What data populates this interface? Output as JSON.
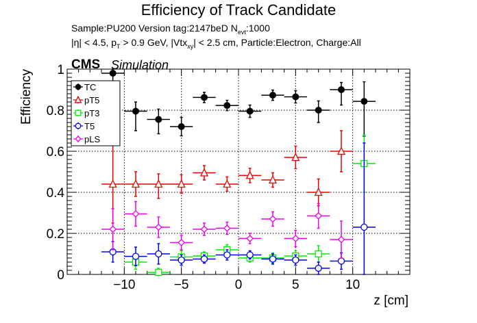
{
  "header": {
    "title": "Efficiency of Track Candidate",
    "subtitle_line1": "Sample:PU200   Version tag:2147beD  N",
    "subtitle_line1_sub": "evt",
    "subtitle_line1_end": ":1000",
    "subtitle_line2_a": "|η| < 4.5, p",
    "subtitle_line2_sub1": "T",
    "subtitle_line2_b": " > 0.9 GeV, |Vtx",
    "subtitle_line2_sub2": "xy",
    "subtitle_line2_c": "| < 2.5 cm, Particle:Electron, Charge:All",
    "experiment": "CMS",
    "tag": "Simulation"
  },
  "chart_data": {
    "type": "scatter",
    "xlabel": "z [cm]",
    "ylabel": "Efficiency",
    "xlim": [
      -15,
      15
    ],
    "ylim": [
      0,
      1.0
    ],
    "xticks": [
      -10,
      -5,
      0,
      5,
      10
    ],
    "xtick_labels": [
      "−10",
      "−5",
      "0",
      "5",
      "10"
    ],
    "yticks": [
      0,
      0.2,
      0.4,
      0.6,
      0.8,
      1
    ],
    "ytick_labels": [
      "0",
      "0.2",
      "0.4",
      "0.6",
      "0.8",
      "1"
    ],
    "grid": true,
    "legend_position": "top-left",
    "bin_half_width": 1,
    "series": [
      {
        "name": "TC",
        "color": "#000000",
        "marker": "circle-filled",
        "x": [
          -11,
          -9,
          -7,
          -5,
          -3,
          -1,
          1,
          3,
          5,
          7,
          9,
          11
        ],
        "y": [
          0.98,
          0.795,
          0.755,
          0.72,
          0.862,
          0.823,
          0.795,
          0.873,
          0.865,
          0.8,
          0.9,
          0.843
        ],
        "err_up": [
          0.02,
          0.045,
          0.05,
          0.045,
          0.025,
          0.025,
          0.03,
          0.025,
          0.03,
          0.045,
          0.035,
          0.095
        ],
        "err_down": [
          0.1,
          0.095,
          0.07,
          0.045,
          0.025,
          0.025,
          0.03,
          0.025,
          0.03,
          0.06,
          0.075,
          0.17
        ]
      },
      {
        "name": "pT5",
        "color": "#ee0000",
        "marker": "triangle-open",
        "x": [
          -11,
          -9,
          -7,
          -5,
          -3,
          -1,
          1,
          3,
          5,
          7,
          9,
          11
        ],
        "y": [
          0.44,
          0.44,
          0.44,
          0.44,
          0.495,
          0.44,
          0.482,
          0.46,
          0.57,
          0.4,
          0.6,
          0.0
        ],
        "err_up": [
          0.19,
          0.06,
          0.05,
          0.045,
          0.035,
          0.035,
          0.035,
          0.035,
          0.055,
          0.065,
          0.1,
          0.0
        ],
        "err_down": [
          0.19,
          0.06,
          0.07,
          0.045,
          0.035,
          0.035,
          0.035,
          0.035,
          0.055,
          0.065,
          0.1,
          0.0
        ]
      },
      {
        "name": "pT3",
        "color": "#00ee00",
        "marker": "square-open",
        "x": [
          -11,
          -9,
          -7,
          -5,
          -3,
          -1,
          1,
          3,
          5,
          7,
          9,
          11
        ],
        "y": [
          0.0,
          0.06,
          0.01,
          0.085,
          0.09,
          0.12,
          0.08,
          0.08,
          0.09,
          0.1,
          0.0,
          0.54
        ],
        "err_up": [
          0.0,
          0.035,
          0.02,
          0.03,
          0.02,
          0.025,
          0.02,
          0.025,
          0.025,
          0.04,
          0.0,
          0.14
        ],
        "err_down": [
          0.0,
          0.035,
          0.01,
          0.03,
          0.02,
          0.025,
          0.02,
          0.025,
          0.025,
          0.04,
          0.0,
          0.14
        ]
      },
      {
        "name": "T5",
        "color": "#0000ee",
        "marker": "circle-open",
        "x": [
          -11,
          -9,
          -7,
          -5,
          -3,
          -1,
          1,
          3,
          5,
          7,
          9,
          11
        ],
        "y": [
          0.11,
          0.088,
          0.1,
          0.07,
          0.075,
          0.095,
          0.095,
          0.075,
          0.07,
          0.03,
          0.065,
          0.23
        ],
        "err_up": [
          0.05,
          0.045,
          0.05,
          0.025,
          0.02,
          0.025,
          0.02,
          0.025,
          0.025,
          0.03,
          0.04,
          0.41
        ],
        "err_down": [
          0.05,
          0.045,
          0.05,
          0.025,
          0.02,
          0.025,
          0.02,
          0.025,
          0.025,
          0.03,
          0.04,
          0.23
        ]
      },
      {
        "name": "pLS",
        "color": "#ee00ee",
        "marker": "diamond-open",
        "x": [
          -11,
          -9,
          -7,
          -5,
          -3,
          -1,
          1,
          3,
          5,
          7,
          9,
          11
        ],
        "y": [
          0.22,
          0.295,
          0.23,
          0.155,
          0.22,
          0.225,
          0.175,
          0.27,
          0.175,
          0.285,
          0.17,
          0.0
        ],
        "err_up": [
          0.1,
          0.06,
          0.05,
          0.035,
          0.03,
          0.03,
          0.025,
          0.035,
          0.04,
          0.06,
          0.09,
          0.0
        ],
        "err_down": [
          0.1,
          0.06,
          0.05,
          0.035,
          0.03,
          0.03,
          0.025,
          0.035,
          0.04,
          0.06,
          0.09,
          0.0
        ]
      }
    ]
  }
}
